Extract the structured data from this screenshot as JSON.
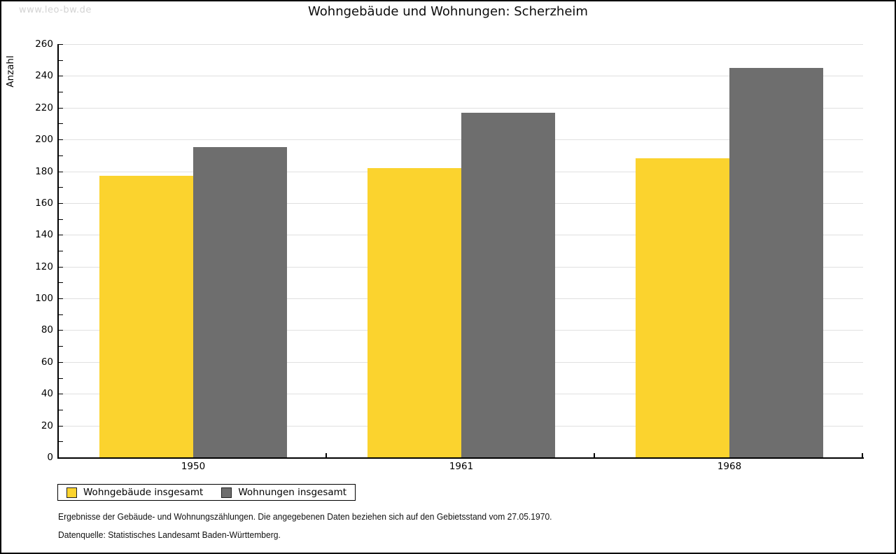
{
  "page": {
    "watermark": "www.leo-bw.de",
    "title": "Wohngebäude und Wohnungen: Scherzheim"
  },
  "chart_data": {
    "type": "bar",
    "title": "Wohngebäude und Wohnungen: Scherzheim",
    "ylabel": "Anzahl",
    "xlabel": "",
    "categories": [
      "1950",
      "1961",
      "1968"
    ],
    "series": [
      {
        "name": "Wohngebäude insgesamt",
        "color": "#FBD32E",
        "values": [
          177,
          182,
          188
        ]
      },
      {
        "name": "Wohnungen insgesamt",
        "color": "#6E6E6E",
        "values": [
          195,
          217,
          245
        ]
      }
    ],
    "ylim": [
      0,
      260
    ],
    "y_major_tick_step": 20,
    "y_minor_tick_step": 10,
    "grid": "horizontal-major",
    "gridline_color": "#E0E0E0",
    "legend_position": "bottom-left"
  },
  "footer": {
    "line1": "Ergebnisse der Gebäude- und Wohnungszählungen. Die angegebenen Daten beziehen sich auf den Gebietsstand vom 27.05.1970.",
    "line2": "Datenquelle: Statistisches Landesamt Baden-Württemberg."
  }
}
